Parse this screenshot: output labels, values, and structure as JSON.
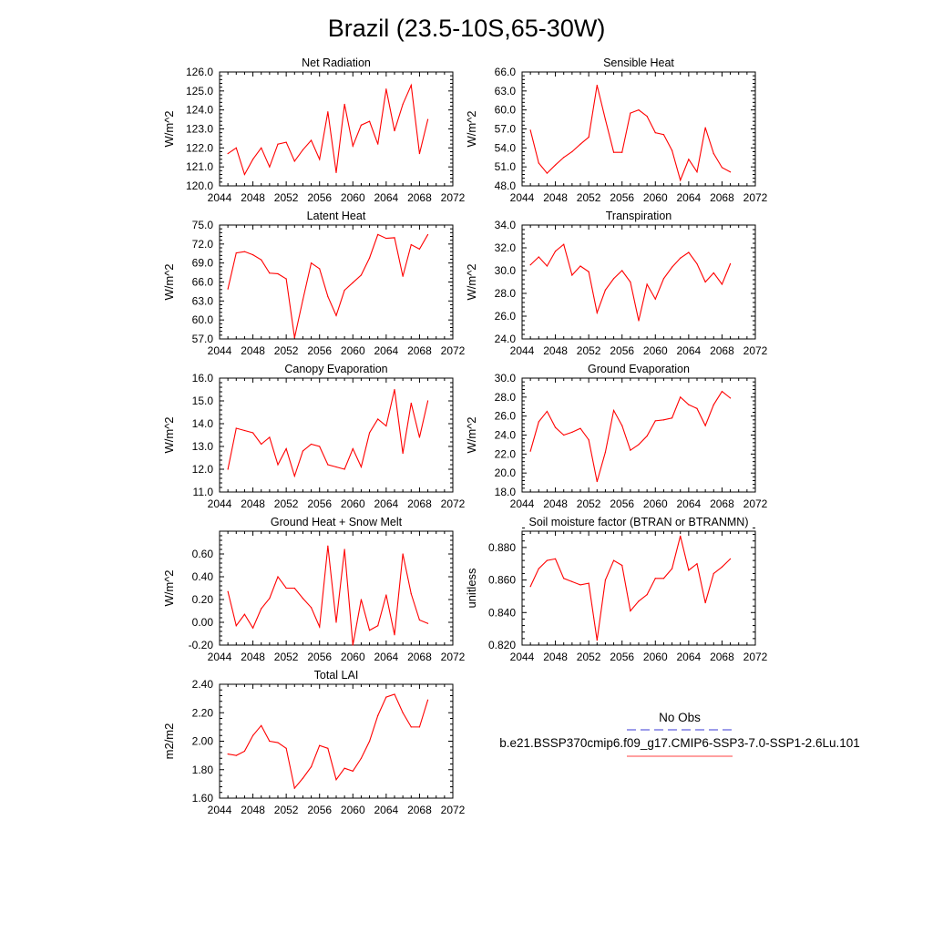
{
  "figure": {
    "title": "Brazil (23.5-10S,65-30W)"
  },
  "legend": {
    "entries": [
      {
        "label": "No Obs",
        "color": "#3a3ad6",
        "dashed": true
      },
      {
        "label": "b.e21.BSSP370cmip6.f09_g17.CMIP6-SSP3-7.0-SSP1-2.6Lu.101",
        "color": "#ff4040",
        "dashed": false
      }
    ]
  },
  "chart_data": [
    {
      "type": "line",
      "title": "Net Radiation",
      "ylabel": "W/m^2",
      "xlim": [
        2044,
        2072
      ],
      "ylim": [
        120.0,
        126.0
      ],
      "xticks": [
        "2044",
        "2048",
        "2052",
        "2056",
        "2060",
        "2064",
        "2068",
        "2072"
      ],
      "yticks": [
        "120.0",
        "121.0",
        "122.0",
        "123.0",
        "124.0",
        "125.0",
        "126.0"
      ],
      "x": [
        2045,
        2046,
        2047,
        2048,
        2049,
        2050,
        2051,
        2052,
        2053,
        2054,
        2055,
        2056,
        2057,
        2058,
        2059,
        2060,
        2061,
        2062,
        2063,
        2064,
        2065,
        2066,
        2067,
        2068,
        2069
      ],
      "series": [
        {
          "name": "b.e21.BSSP370cmip6.f09_g17.CMIP6-SSP3-7.0-SSP1-2.6Lu.101",
          "color": "#ff0000",
          "values": [
            121.7,
            122.0,
            120.6,
            121.4,
            122.0,
            121.0,
            122.2,
            122.3,
            121.3,
            121.9,
            122.4,
            121.4,
            123.9,
            120.7,
            124.3,
            122.1,
            123.2,
            123.4,
            122.2,
            125.1,
            122.9,
            124.3,
            125.3,
            121.7,
            123.5
          ]
        }
      ]
    },
    {
      "type": "line",
      "title": "Sensible Heat",
      "ylabel": "W/m^2",
      "xlim": [
        2044,
        2072
      ],
      "ylim": [
        48.0,
        66.0
      ],
      "xticks": [
        "2044",
        "2048",
        "2052",
        "2056",
        "2060",
        "2064",
        "2068",
        "2072"
      ],
      "yticks": [
        "48.0",
        "51.0",
        "54.0",
        "57.0",
        "60.0",
        "63.0",
        "66.0"
      ],
      "x": [
        2045,
        2046,
        2047,
        2048,
        2049,
        2050,
        2051,
        2052,
        2053,
        2054,
        2055,
        2056,
        2057,
        2058,
        2059,
        2060,
        2061,
        2062,
        2063,
        2064,
        2065,
        2066,
        2067,
        2068,
        2069
      ],
      "series": [
        {
          "name": "b.e21.BSSP370cmip6.f09_g17.CMIP6-SSP3-7.0-SSP1-2.6Lu.101",
          "color": "#ff0000",
          "values": [
            56.8,
            51.6,
            50.0,
            51.3,
            52.5,
            53.4,
            54.6,
            55.7,
            63.9,
            58.5,
            53.3,
            53.3,
            59.5,
            60.0,
            59.0,
            56.4,
            56.1,
            53.6,
            48.9,
            52.2,
            50.2,
            57.2,
            53.1,
            50.9,
            50.2
          ]
        }
      ]
    },
    {
      "type": "line",
      "title": "Latent Heat",
      "ylabel": "W/m^2",
      "xlim": [
        2044,
        2072
      ],
      "ylim": [
        57.0,
        75.0
      ],
      "xticks": [
        "2044",
        "2048",
        "2052",
        "2056",
        "2060",
        "2064",
        "2068",
        "2072"
      ],
      "yticks": [
        "57.0",
        "60.0",
        "63.0",
        "66.0",
        "69.0",
        "72.0",
        "75.0"
      ],
      "x": [
        2045,
        2046,
        2047,
        2048,
        2049,
        2050,
        2051,
        2052,
        2053,
        2054,
        2055,
        2056,
        2057,
        2058,
        2059,
        2060,
        2061,
        2062,
        2063,
        2064,
        2065,
        2066,
        2067,
        2068,
        2069
      ],
      "series": [
        {
          "name": "b.e21.BSSP370cmip6.f09_g17.CMIP6-SSP3-7.0-SSP1-2.6Lu.101",
          "color": "#ff0000",
          "values": [
            64.9,
            70.6,
            70.8,
            70.3,
            69.5,
            67.4,
            67.3,
            66.5,
            57.2,
            63.2,
            69.0,
            68.1,
            63.7,
            60.7,
            64.7,
            65.9,
            67.1,
            69.8,
            73.5,
            72.9,
            73.0,
            66.9,
            71.9,
            71.2,
            73.5
          ]
        }
      ]
    },
    {
      "type": "line",
      "title": "Transpiration",
      "ylabel": "W/m^2",
      "xlim": [
        2044,
        2072
      ],
      "ylim": [
        24.0,
        34.0
      ],
      "xticks": [
        "2044",
        "2048",
        "2052",
        "2056",
        "2060",
        "2064",
        "2068",
        "2072"
      ],
      "yticks": [
        "24.0",
        "26.0",
        "28.0",
        "30.0",
        "32.0",
        "34.0"
      ],
      "x": [
        2045,
        2046,
        2047,
        2048,
        2049,
        2050,
        2051,
        2052,
        2053,
        2054,
        2055,
        2056,
        2057,
        2058,
        2059,
        2060,
        2061,
        2062,
        2063,
        2064,
        2065,
        2066,
        2067,
        2068,
        2069
      ],
      "series": [
        {
          "name": "b.e21.BSSP370cmip6.f09_g17.CMIP6-SSP3-7.0-SSP1-2.6Lu.101",
          "color": "#ff0000",
          "values": [
            30.5,
            31.2,
            30.4,
            31.7,
            32.3,
            29.6,
            30.4,
            29.9,
            26.3,
            28.3,
            29.3,
            30.0,
            29.0,
            25.6,
            28.8,
            27.5,
            29.3,
            30.3,
            31.1,
            31.6,
            30.6,
            29.0,
            29.8,
            28.8,
            30.6
          ]
        }
      ]
    },
    {
      "type": "line",
      "title": "Canopy Evaporation",
      "ylabel": "W/m^2",
      "xlim": [
        2044,
        2072
      ],
      "ylim": [
        11.0,
        16.0
      ],
      "xticks": [
        "2044",
        "2048",
        "2052",
        "2056",
        "2060",
        "2064",
        "2068",
        "2072"
      ],
      "yticks": [
        "11.0",
        "12.0",
        "13.0",
        "14.0",
        "15.0",
        "16.0"
      ],
      "x": [
        2045,
        2046,
        2047,
        2048,
        2049,
        2050,
        2051,
        2052,
        2053,
        2054,
        2055,
        2056,
        2057,
        2058,
        2059,
        2060,
        2061,
        2062,
        2063,
        2064,
        2065,
        2066,
        2067,
        2068,
        2069
      ],
      "series": [
        {
          "name": "b.e21.BSSP370cmip6.f09_g17.CMIP6-SSP3-7.0-SSP1-2.6Lu.101",
          "color": "#ff0000",
          "values": [
            12.0,
            13.8,
            13.7,
            13.6,
            13.1,
            13.4,
            12.2,
            12.9,
            11.7,
            12.8,
            13.1,
            13.0,
            12.2,
            12.1,
            12.0,
            12.9,
            12.1,
            13.6,
            14.2,
            13.9,
            15.5,
            12.7,
            14.9,
            13.4,
            15.0
          ]
        }
      ]
    },
    {
      "type": "line",
      "title": "Ground Evaporation",
      "ylabel": "W/m^2",
      "xlim": [
        2044,
        2072
      ],
      "ylim": [
        18.0,
        30.0
      ],
      "xticks": [
        "2044",
        "2048",
        "2052",
        "2056",
        "2060",
        "2064",
        "2068",
        "2072"
      ],
      "yticks": [
        "18.0",
        "20.0",
        "22.0",
        "24.0",
        "26.0",
        "28.0",
        "30.0"
      ],
      "x": [
        2045,
        2046,
        2047,
        2048,
        2049,
        2050,
        2051,
        2052,
        2053,
        2054,
        2055,
        2056,
        2057,
        2058,
        2059,
        2060,
        2061,
        2062,
        2063,
        2064,
        2065,
        2066,
        2067,
        2068,
        2069
      ],
      "series": [
        {
          "name": "b.e21.BSSP370cmip6.f09_g17.CMIP6-SSP3-7.0-SSP1-2.6Lu.101",
          "color": "#ff0000",
          "values": [
            22.3,
            25.4,
            26.5,
            24.8,
            24.0,
            24.3,
            24.7,
            23.5,
            19.1,
            22.2,
            26.6,
            25.0,
            22.4,
            23.0,
            23.9,
            25.5,
            25.6,
            25.8,
            28.0,
            27.2,
            26.8,
            25.0,
            27.2,
            28.6,
            27.9
          ]
        }
      ]
    },
    {
      "type": "line",
      "title": "Ground Heat + Snow Melt",
      "ylabel": "W/m^2",
      "xlim": [
        2044,
        2072
      ],
      "ylim": [
        -0.2,
        0.8
      ],
      "xticks": [
        "2044",
        "2048",
        "2052",
        "2056",
        "2060",
        "2064",
        "2068",
        "2072"
      ],
      "yticks": [
        "-0.20",
        "0.00",
        "0.20",
        "0.40",
        "0.60"
      ],
      "ytick_values": [
        -0.2,
        0.0,
        0.2,
        0.4,
        0.6
      ],
      "x": [
        2045,
        2046,
        2047,
        2048,
        2049,
        2050,
        2051,
        2052,
        2053,
        2054,
        2055,
        2056,
        2057,
        2058,
        2059,
        2060,
        2061,
        2062,
        2063,
        2064,
        2065,
        2066,
        2067,
        2068,
        2069
      ],
      "series": [
        {
          "name": "b.e21.BSSP370cmip6.f09_g17.CMIP6-SSP3-7.0-SSP1-2.6Lu.101",
          "color": "#ff0000",
          "values": [
            0.27,
            -0.03,
            0.07,
            -0.05,
            0.12,
            0.21,
            0.4,
            0.3,
            0.3,
            0.21,
            0.13,
            -0.04,
            0.67,
            0.0,
            0.64,
            -0.2,
            0.2,
            -0.07,
            -0.03,
            0.24,
            -0.11,
            0.6,
            0.25,
            0.02,
            -0.01
          ]
        }
      ]
    },
    {
      "type": "line",
      "title": "Soil moisture factor (BTRAN or BTRANMN)",
      "ylabel": "unitless",
      "xlim": [
        2044,
        2072
      ],
      "ylim": [
        0.82,
        0.89
      ],
      "xticks": [
        "2044",
        "2048",
        "2052",
        "2056",
        "2060",
        "2064",
        "2068",
        "2072"
      ],
      "yticks": [
        "0.820",
        "0.840",
        "0.860",
        "0.880"
      ],
      "ytick_values": [
        0.82,
        0.84,
        0.86,
        0.88
      ],
      "x": [
        2045,
        2046,
        2047,
        2048,
        2049,
        2050,
        2051,
        2052,
        2053,
        2054,
        2055,
        2056,
        2057,
        2058,
        2059,
        2060,
        2061,
        2062,
        2063,
        2064,
        2065,
        2066,
        2067,
        2068,
        2069
      ],
      "series": [
        {
          "name": "b.e21.BSSP370cmip6.f09_g17.CMIP6-SSP3-7.0-SSP1-2.6Lu.101",
          "color": "#ff0000",
          "values": [
            0.856,
            0.867,
            0.872,
            0.873,
            0.861,
            0.859,
            0.857,
            0.858,
            0.823,
            0.86,
            0.872,
            0.869,
            0.841,
            0.847,
            0.851,
            0.861,
            0.861,
            0.867,
            0.887,
            0.866,
            0.87,
            0.846,
            0.864,
            0.868,
            0.873
          ]
        }
      ]
    },
    {
      "type": "line",
      "title": "Total LAI",
      "ylabel": "m2/m2",
      "xlim": [
        2044,
        2072
      ],
      "ylim": [
        1.6,
        2.4
      ],
      "xticks": [
        "2044",
        "2048",
        "2052",
        "2056",
        "2060",
        "2064",
        "2068",
        "2072"
      ],
      "yticks": [
        "1.60",
        "1.80",
        "2.00",
        "2.20",
        "2.40"
      ],
      "ytick_values": [
        1.6,
        1.8,
        2.0,
        2.2,
        2.4
      ],
      "x": [
        2045,
        2046,
        2047,
        2048,
        2049,
        2050,
        2051,
        2052,
        2053,
        2054,
        2055,
        2056,
        2057,
        2058,
        2059,
        2060,
        2061,
        2062,
        2063,
        2064,
        2065,
        2066,
        2067,
        2068,
        2069
      ],
      "series": [
        {
          "name": "b.e21.BSSP370cmip6.f09_g17.CMIP6-SSP3-7.0-SSP1-2.6Lu.101",
          "color": "#ff0000",
          "values": [
            1.91,
            1.9,
            1.93,
            2.04,
            2.11,
            2.0,
            1.99,
            1.95,
            1.67,
            1.74,
            1.82,
            1.97,
            1.95,
            1.73,
            1.81,
            1.79,
            1.88,
            2.0,
            2.18,
            2.31,
            2.33,
            2.2,
            2.1,
            2.1,
            2.29
          ]
        }
      ]
    }
  ]
}
